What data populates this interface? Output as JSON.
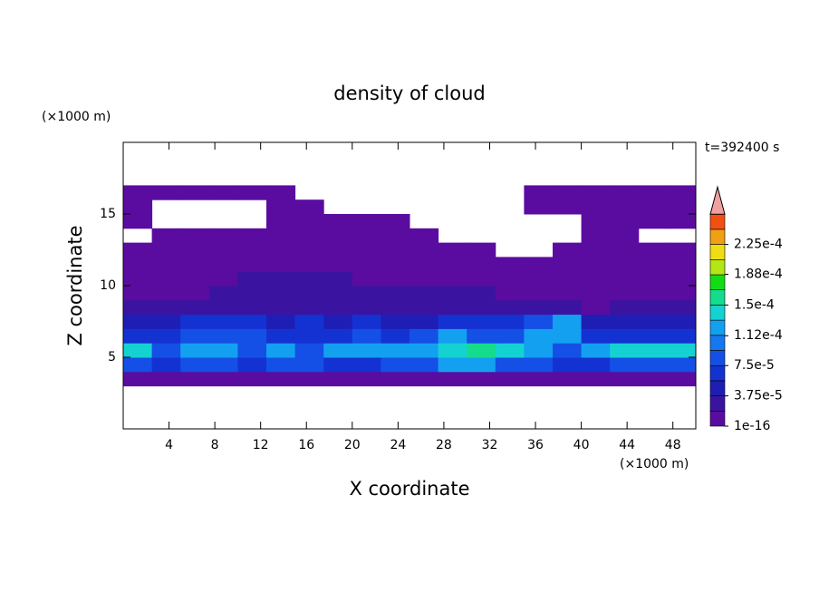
{
  "chart_data": {
    "type": "contour",
    "title": "density of cloud",
    "x_label": "X coordinate",
    "y_label": "Z coordinate",
    "x_unit": "(×1000 m)",
    "y_unit": "(×1000 m)",
    "annotation": "t=392400 s",
    "xlim": [
      0,
      50
    ],
    "ylim": [
      0,
      20
    ],
    "xticks": [
      4,
      8,
      12,
      16,
      20,
      24,
      28,
      32,
      36,
      40,
      44,
      48
    ],
    "yticks": [
      5,
      10,
      15
    ],
    "levels": [
      1e-16,
      1.875e-05,
      3.75e-05,
      5.625e-05,
      7.5e-05,
      9.375e-05,
      0.0001125,
      0.00013125,
      0.00015,
      0.00016875,
      0.0001875,
      0.00020625,
      0.000225,
      0.00024375,
      0.0002625
    ],
    "colors": [
      "#5a0ca0",
      "#3a14a0",
      "#1e1eb4",
      "#1432d2",
      "#1450e6",
      "#1478f0",
      "#14a0f0",
      "#14d2d2",
      "#14dc8c",
      "#14dc14",
      "#b4e614",
      "#f0dc14",
      "#f0a014",
      "#f05014"
    ],
    "extend_color": "#f0a0a0",
    "colorbar_ticks": [
      {
        "value": 1e-16,
        "label": "1e-16"
      },
      {
        "value": 3.75e-05,
        "label": "3.75e-5"
      },
      {
        "value": 7.5e-05,
        "label": "7.5e-5"
      },
      {
        "value": 0.000112,
        "label": "1.12e-4"
      },
      {
        "value": 0.00015,
        "label": "1.5e-4"
      },
      {
        "value": 0.000188,
        "label": "1.88e-4"
      },
      {
        "value": 0.000225,
        "label": "2.25e-4"
      }
    ],
    "x": [
      1.25,
      3.75,
      6.25,
      8.75,
      11.25,
      13.75,
      16.25,
      18.75,
      21.25,
      23.75,
      26.25,
      28.75,
      31.25,
      33.75,
      36.25,
      38.75,
      41.25,
      43.75,
      46.25,
      48.75
    ],
    "y": [
      3.5,
      4.5,
      5.5,
      6.5,
      7.5,
      8.5,
      9.5,
      10.5,
      11.5,
      12.5,
      13.5,
      14.5,
      15.5,
      16.5
    ],
    "z": [
      [
        5e-06,
        5e-06,
        5e-06,
        5e-06,
        5e-06,
        5e-06,
        5e-06,
        5e-06,
        5e-06,
        5e-06,
        5e-06,
        5e-06,
        5e-06,
        5e-06,
        5e-06,
        5e-06,
        5e-06,
        5e-06,
        5e-06,
        5e-06
      ],
      [
        9e-05,
        6e-05,
        9e-05,
        9e-05,
        6e-05,
        9e-05,
        9e-05,
        6e-05,
        6e-05,
        9e-05,
        9e-05,
        0.00012,
        0.00012,
        9e-05,
        9e-05,
        6e-05,
        6e-05,
        9e-05,
        9e-05,
        9e-05
      ],
      [
        0.00014,
        9e-05,
        0.00012,
        0.00012,
        9e-05,
        0.00012,
        9e-05,
        0.00012,
        0.00012,
        0.00012,
        0.00012,
        0.00014,
        0.00016,
        0.00014,
        0.00012,
        9e-05,
        0.00012,
        0.00014,
        0.00014,
        0.00014
      ],
      [
        6e-05,
        6e-05,
        9e-05,
        9e-05,
        9e-05,
        6e-05,
        6e-05,
        6e-05,
        9e-05,
        6e-05,
        9e-05,
        0.00012,
        9e-05,
        9e-05,
        0.00012,
        0.00012,
        6e-05,
        6e-05,
        6e-05,
        6e-05
      ],
      [
        4.5e-05,
        4.5e-05,
        6e-05,
        6e-05,
        6e-05,
        4.5e-05,
        6e-05,
        4.5e-05,
        6e-05,
        4.5e-05,
        4.5e-05,
        6e-05,
        6e-05,
        6e-05,
        9e-05,
        0.00012,
        4.5e-05,
        4.5e-05,
        4.5e-05,
        4.5e-05
      ],
      [
        2.5e-05,
        2.5e-05,
        2.5e-05,
        2.5e-05,
        2.5e-05,
        2.5e-05,
        2.5e-05,
        2.5e-05,
        2.5e-05,
        2.5e-05,
        2.5e-05,
        2.5e-05,
        2.5e-05,
        2.5e-05,
        2.5e-05,
        2.5e-05,
        5e-06,
        2.5e-05,
        2.5e-05,
        2.5e-05
      ],
      [
        5e-06,
        5e-06,
        5e-06,
        2e-05,
        2e-05,
        2e-05,
        2e-05,
        2e-05,
        2e-05,
        2e-05,
        2e-05,
        2e-05,
        2e-05,
        5e-06,
        5e-06,
        5e-06,
        5e-06,
        5e-06,
        5e-06,
        5e-06
      ],
      [
        5e-06,
        5e-06,
        5e-06,
        5e-06,
        2e-05,
        2e-05,
        2e-05,
        2e-05,
        5e-06,
        5e-06,
        5e-06,
        5e-06,
        5e-06,
        5e-06,
        5e-06,
        5e-06,
        5e-06,
        5e-06,
        5e-06,
        5e-06
      ],
      [
        5e-06,
        5e-06,
        5e-06,
        5e-06,
        5e-06,
        5e-06,
        5e-06,
        5e-06,
        5e-06,
        5e-06,
        5e-06,
        5e-06,
        5e-06,
        5e-06,
        5e-06,
        5e-06,
        5e-06,
        5e-06,
        5e-06,
        5e-06
      ],
      [
        5e-06,
        5e-06,
        5e-06,
        5e-06,
        5e-06,
        5e-06,
        5e-06,
        5e-06,
        5e-06,
        5e-06,
        5e-06,
        5e-06,
        5e-06,
        null,
        null,
        5e-06,
        5e-06,
        5e-06,
        5e-06,
        5e-06
      ],
      [
        null,
        5e-06,
        5e-06,
        5e-06,
        5e-06,
        5e-06,
        5e-06,
        5e-06,
        5e-06,
        5e-06,
        5e-06,
        null,
        null,
        null,
        null,
        null,
        5e-06,
        5e-06,
        null,
        null
      ],
      [
        5e-06,
        null,
        null,
        null,
        null,
        5e-06,
        5e-06,
        5e-06,
        5e-06,
        5e-06,
        null,
        null,
        null,
        null,
        null,
        null,
        5e-06,
        5e-06,
        5e-06,
        5e-06
      ],
      [
        5e-06,
        null,
        null,
        null,
        null,
        5e-06,
        5e-06,
        null,
        null,
        null,
        null,
        null,
        null,
        null,
        5e-06,
        5e-06,
        5e-06,
        5e-06,
        5e-06,
        5e-06
      ],
      [
        5e-06,
        5e-06,
        5e-06,
        5e-06,
        5e-06,
        5e-06,
        null,
        null,
        null,
        null,
        null,
        null,
        null,
        null,
        5e-06,
        5e-06,
        5e-06,
        5e-06,
        5e-06,
        5e-06
      ]
    ]
  }
}
